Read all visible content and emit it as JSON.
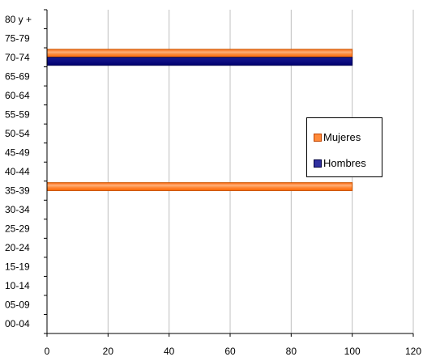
{
  "chart_data": {
    "type": "bar",
    "orientation": "horizontal",
    "categories": [
      "00-04",
      "05-09",
      "10-14",
      "15-19",
      "20-24",
      "25-29",
      "30-34",
      "35-39",
      "40-44",
      "45-49",
      "50-54",
      "55-59",
      "60-64",
      "65-69",
      "70-74",
      "75-79",
      "80 y +"
    ],
    "series": [
      {
        "name": "Mujeres",
        "color": "#FF6600",
        "values": [
          0,
          0,
          0,
          0,
          0,
          0,
          0,
          100,
          0,
          0,
          0,
          0,
          0,
          0,
          100,
          0,
          0
        ]
      },
      {
        "name": "Hombres",
        "color": "#000080",
        "values": [
          0,
          0,
          0,
          0,
          0,
          0,
          0,
          0,
          0,
          0,
          0,
          0,
          0,
          0,
          100,
          0,
          0
        ]
      }
    ],
    "xlim": [
      0,
      120
    ],
    "xticks": [
      "0",
      "20",
      "40",
      "60",
      "80",
      "100",
      "120"
    ],
    "grid": "vertical",
    "legend_position": "right"
  }
}
